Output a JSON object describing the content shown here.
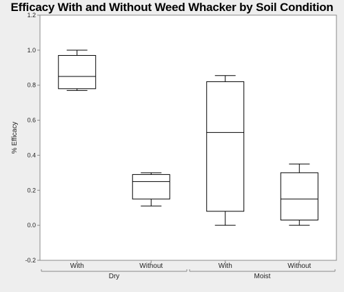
{
  "chart_data": {
    "type": "box",
    "title": "Efficacy With and Without Weed Whacker by Soil Condition",
    "ylabel": "% Efficacy",
    "xlabel": "",
    "ylim": [
      -0.2,
      1.2
    ],
    "yticks": [
      "-0.2",
      "0.0",
      "0.2",
      "0.4",
      "0.6",
      "0.8",
      "1.0",
      "1.2"
    ],
    "groups": [
      "Dry",
      "Moist"
    ],
    "categories": [
      "With",
      "Without",
      "With",
      "Without"
    ],
    "boxes": [
      {
        "group": "Dry",
        "category": "With",
        "min": 0.77,
        "q1": 0.78,
        "median": 0.85,
        "q3": 0.97,
        "max": 1.0
      },
      {
        "group": "Dry",
        "category": "Without",
        "min": 0.11,
        "q1": 0.15,
        "median": 0.25,
        "q3": 0.29,
        "max": 0.3
      },
      {
        "group": "Moist",
        "category": "With",
        "min": 0.0,
        "q1": 0.08,
        "median": 0.53,
        "q3": 0.82,
        "max": 0.855
      },
      {
        "group": "Moist",
        "category": "Without",
        "min": 0.0,
        "q1": 0.03,
        "median": 0.15,
        "q3": 0.3,
        "max": 0.35
      }
    ],
    "grid": false,
    "colors": {
      "plot_background": "#ffffff",
      "page_background": "#eeeeee",
      "box_stroke": "#000000",
      "axis_stroke": "#888888"
    }
  }
}
